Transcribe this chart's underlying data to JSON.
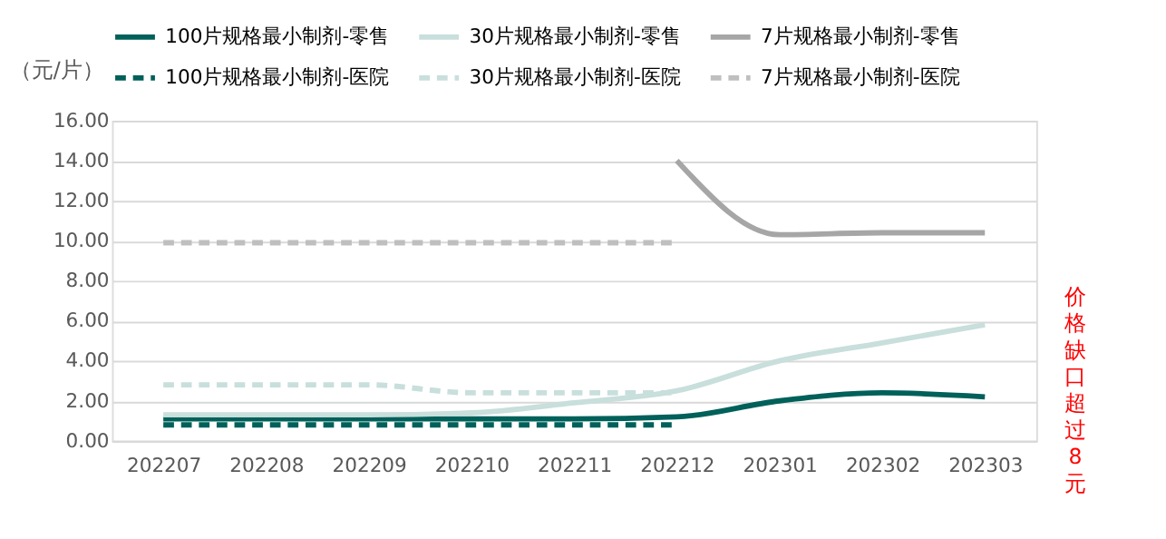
{
  "chart_data": {
    "type": "line",
    "ylabel": "（元/片）",
    "categories": [
      "202207",
      "202208",
      "202209",
      "202210",
      "202211",
      "202212",
      "202301",
      "202302",
      "202303"
    ],
    "series": [
      {
        "name": "100片规格最小制剂-零售",
        "color": "#00605a",
        "line_style": "solid",
        "values": [
          1.1,
          1.1,
          1.1,
          1.1,
          1.1,
          1.2,
          2.0,
          2.4,
          2.2
        ]
      },
      {
        "name": "30片规格最小制剂-零售",
        "color": "#c8dfdc",
        "line_style": "solid",
        "values": [
          1.3,
          1.3,
          1.3,
          1.4,
          1.9,
          2.5,
          4.0,
          4.9,
          5.8
        ]
      },
      {
        "name": "7片规格最小制剂-零售",
        "color": "#a6a6a6",
        "line_style": "solid",
        "values": [
          null,
          null,
          null,
          null,
          null,
          14.0,
          10.3,
          10.4,
          10.4
        ]
      },
      {
        "name": "100片规格最小制剂-医院",
        "color": "#00605a",
        "line_style": "dashed",
        "values": [
          0.8,
          0.8,
          0.8,
          0.8,
          0.8,
          0.8,
          null,
          null,
          null
        ]
      },
      {
        "name": "30片规格最小制剂-医院",
        "color": "#c8dfdc",
        "line_style": "dashed",
        "values": [
          2.8,
          2.8,
          2.8,
          2.4,
          2.4,
          2.4,
          null,
          null,
          null
        ]
      },
      {
        "name": "7片规格最小制剂-医院",
        "color": "#bfbfbf",
        "line_style": "dashed",
        "values": [
          9.9,
          9.9,
          9.9,
          9.9,
          9.9,
          9.9,
          null,
          null,
          null
        ]
      }
    ],
    "ylim": [
      0,
      16
    ],
    "yticks": [
      {
        "value": 0,
        "label": "0.00"
      },
      {
        "value": 2,
        "label": "2.00"
      },
      {
        "value": 4,
        "label": "4.00"
      },
      {
        "value": 6,
        "label": "6.00"
      },
      {
        "value": 8,
        "label": "8.00"
      },
      {
        "value": 10,
        "label": "10.00"
      },
      {
        "value": 12,
        "label": "12.00"
      },
      {
        "value": 14,
        "label": "14.00"
      },
      {
        "value": 16,
        "label": "16.00"
      }
    ],
    "grid": "y",
    "legend": "top",
    "marker": "none",
    "annotations": [
      "价格缺口超过8元"
    ]
  }
}
